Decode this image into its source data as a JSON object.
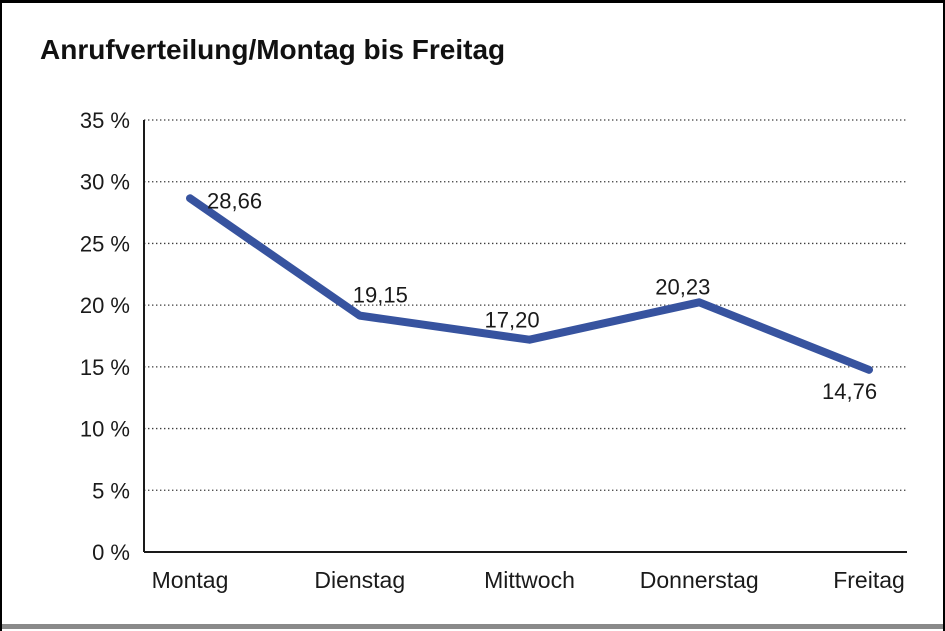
{
  "chart": {
    "title": "Anrufverteilung/Montag bis Freitag"
  },
  "colors": {
    "line": "#37539F",
    "text": "#1a1a1a",
    "grid": "#3c3c3c",
    "axis": "#1a1a1a",
    "frame_shadow": "#8a8a8a",
    "background": "#ffffff"
  },
  "chart_data": {
    "type": "line",
    "title": "Anrufverteilung/Montag bis Freitag",
    "categories": [
      "Montag",
      "Dienstag",
      "Mittwoch",
      "Donnerstag",
      "Freitag"
    ],
    "values": [
      28.66,
      19.15,
      17.2,
      20.23,
      14.76
    ],
    "value_labels": [
      "28,66",
      "19,15",
      "17,20",
      "20,23",
      "14,76"
    ],
    "series_name": "Anrufverteilung",
    "xlabel": "",
    "ylabel": "",
    "ylim": [
      0,
      35
    ],
    "ytick_step": 5,
    "ytick_labels": [
      "0 %",
      "5 %",
      "10 %",
      "15 %",
      "20 %",
      "25 %",
      "30 %",
      "35 %"
    ],
    "grid": "horizontal-dotted",
    "legend": "none"
  }
}
